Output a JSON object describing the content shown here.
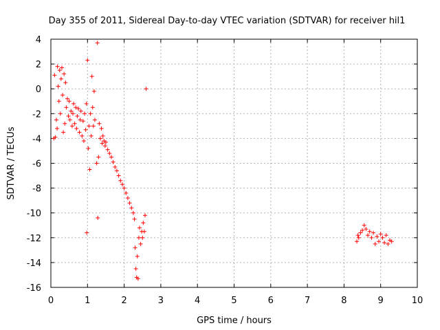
{
  "chart_data": {
    "type": "scatter",
    "title": "Day 355 of 2011, Sidereal Day-to-day VTEC variation (SDTVAR) for receiver hil1",
    "xlabel": "GPS time / hours",
    "ylabel": "SDTVAR / TECUs",
    "xlim": [
      0,
      10
    ],
    "ylim": [
      -16,
      4
    ],
    "xticks": [
      0,
      1,
      2,
      3,
      4,
      5,
      6,
      7,
      8,
      9,
      10
    ],
    "yticks": [
      -16,
      -14,
      -12,
      -10,
      -8,
      -6,
      -4,
      -2,
      0,
      2,
      4
    ],
    "grid": true,
    "marker": "plus",
    "color": "#ff0000",
    "series": [
      {
        "name": "hil1",
        "points": [
          [
            0.08,
            -4.0
          ],
          [
            0.1,
            1.1
          ],
          [
            0.12,
            -3.9
          ],
          [
            0.15,
            -2.5
          ],
          [
            0.17,
            -3.2
          ],
          [
            0.18,
            1.8
          ],
          [
            0.2,
            0.2
          ],
          [
            0.22,
            -1.0
          ],
          [
            0.24,
            1.5
          ],
          [
            0.26,
            -2.0
          ],
          [
            0.28,
            0.8
          ],
          [
            0.3,
            1.7
          ],
          [
            0.32,
            -0.5
          ],
          [
            0.34,
            -3.5
          ],
          [
            0.36,
            1.2
          ],
          [
            0.38,
            -2.8
          ],
          [
            0.4,
            0.5
          ],
          [
            0.42,
            -1.5
          ],
          [
            0.45,
            -0.8
          ],
          [
            0.48,
            -2.2
          ],
          [
            0.5,
            -1.0
          ],
          [
            0.52,
            -2.5
          ],
          [
            0.55,
            -1.8
          ],
          [
            0.58,
            -3.0
          ],
          [
            0.6,
            -2.0
          ],
          [
            0.62,
            -1.2
          ],
          [
            0.65,
            -2.8
          ],
          [
            0.68,
            -1.5
          ],
          [
            0.7,
            -3.2
          ],
          [
            0.72,
            -2.2
          ],
          [
            0.75,
            -1.6
          ],
          [
            0.78,
            -3.5
          ],
          [
            0.8,
            -2.5
          ],
          [
            0.82,
            -1.8
          ],
          [
            0.85,
            -3.8
          ],
          [
            0.88,
            -2.6
          ],
          [
            0.9,
            -4.2
          ],
          [
            0.92,
            -2.0
          ],
          [
            0.95,
            -3.3
          ],
          [
            0.97,
            -1.2
          ],
          [
            0.98,
            -11.6
          ],
          [
            1.0,
            2.3
          ],
          [
            1.02,
            -4.8
          ],
          [
            1.04,
            -3.0
          ],
          [
            1.06,
            -6.5
          ],
          [
            1.08,
            -2.0
          ],
          [
            1.1,
            -3.8
          ],
          [
            1.12,
            1.0
          ],
          [
            1.14,
            -1.5
          ],
          [
            1.16,
            -3.0
          ],
          [
            1.18,
            -0.2
          ],
          [
            1.2,
            -2.5
          ],
          [
            1.25,
            -6.0
          ],
          [
            1.27,
            3.7
          ],
          [
            1.28,
            -10.4
          ],
          [
            1.3,
            -5.5
          ],
          [
            1.32,
            -2.8
          ],
          [
            1.35,
            -4.0
          ],
          [
            1.38,
            -3.2
          ],
          [
            1.4,
            -4.4
          ],
          [
            1.42,
            -3.8
          ],
          [
            1.45,
            -4.2
          ],
          [
            1.48,
            -4.6
          ],
          [
            1.5,
            -4.3
          ],
          [
            1.55,
            -4.9
          ],
          [
            1.6,
            -5.2
          ],
          [
            1.65,
            -5.5
          ],
          [
            1.7,
            -5.9
          ],
          [
            1.75,
            -6.3
          ],
          [
            1.8,
            -6.6
          ],
          [
            1.85,
            -7.0
          ],
          [
            1.9,
            -7.4
          ],
          [
            1.95,
            -7.7
          ],
          [
            2.0,
            -8.0
          ],
          [
            2.05,
            -8.4
          ],
          [
            2.1,
            -8.8
          ],
          [
            2.15,
            -9.2
          ],
          [
            2.2,
            -9.6
          ],
          [
            2.25,
            -10.0
          ],
          [
            2.28,
            -10.5
          ],
          [
            2.3,
            -12.8
          ],
          [
            2.32,
            -14.5
          ],
          [
            2.34,
            -15.2
          ],
          [
            2.36,
            -13.5
          ],
          [
            2.38,
            -15.3
          ],
          [
            2.4,
            -12.0
          ],
          [
            2.42,
            -11.2
          ],
          [
            2.45,
            -12.5
          ],
          [
            2.48,
            -11.5
          ],
          [
            2.5,
            -12.0
          ],
          [
            2.52,
            -10.8
          ],
          [
            2.55,
            -11.5
          ],
          [
            2.57,
            -10.2
          ],
          [
            2.6,
            0.0
          ],
          [
            8.35,
            -12.3
          ],
          [
            8.38,
            -11.8
          ],
          [
            8.4,
            -12.0
          ],
          [
            8.45,
            -11.6
          ],
          [
            8.5,
            -11.4
          ],
          [
            8.55,
            -11.0
          ],
          [
            8.6,
            -11.3
          ],
          [
            8.65,
            -11.8
          ],
          [
            8.7,
            -11.5
          ],
          [
            8.75,
            -12.0
          ],
          [
            8.8,
            -11.6
          ],
          [
            8.85,
            -12.5
          ],
          [
            8.9,
            -11.9
          ],
          [
            8.95,
            -12.3
          ],
          [
            9.0,
            -11.7
          ],
          [
            9.05,
            -12.0
          ],
          [
            9.1,
            -12.4
          ],
          [
            9.15,
            -11.8
          ],
          [
            9.2,
            -12.5
          ],
          [
            9.25,
            -12.2
          ],
          [
            9.3,
            -12.3
          ]
        ]
      }
    ]
  }
}
